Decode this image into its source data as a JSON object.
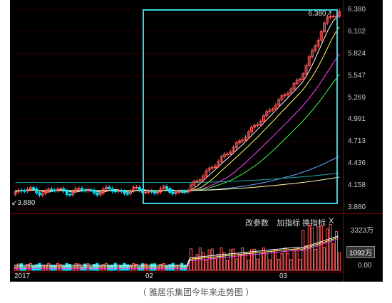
{
  "chart_data": {
    "type": "candlestick",
    "price_axis": [
      "6.380",
      "6.102",
      "5.824",
      "5.547",
      "5.269",
      "4.991",
      "4.713",
      "4.436",
      "4.158",
      "3.880"
    ],
    "high_marker": "6.380",
    "low_marker": "3.880",
    "ylim": [
      3.88,
      6.38
    ],
    "date_labels": [
      "2017",
      "02",
      "03"
    ],
    "volume_axis": [
      "3323万",
      "1092万",
      "0.00"
    ],
    "volume_current": "1092万"
  },
  "toolbar": {
    "change_params": "改参数",
    "add_indicator": "加指标",
    "switch_indicator": "换指标",
    "close": "X"
  },
  "caption": "（ 雅居乐集团今年来走势图 ）",
  "colors": {
    "background": "#000000",
    "up": "#ff5a5a",
    "down": "#00e5ff",
    "highlight_box": "#39d2e0",
    "separator": "#8b0000"
  }
}
